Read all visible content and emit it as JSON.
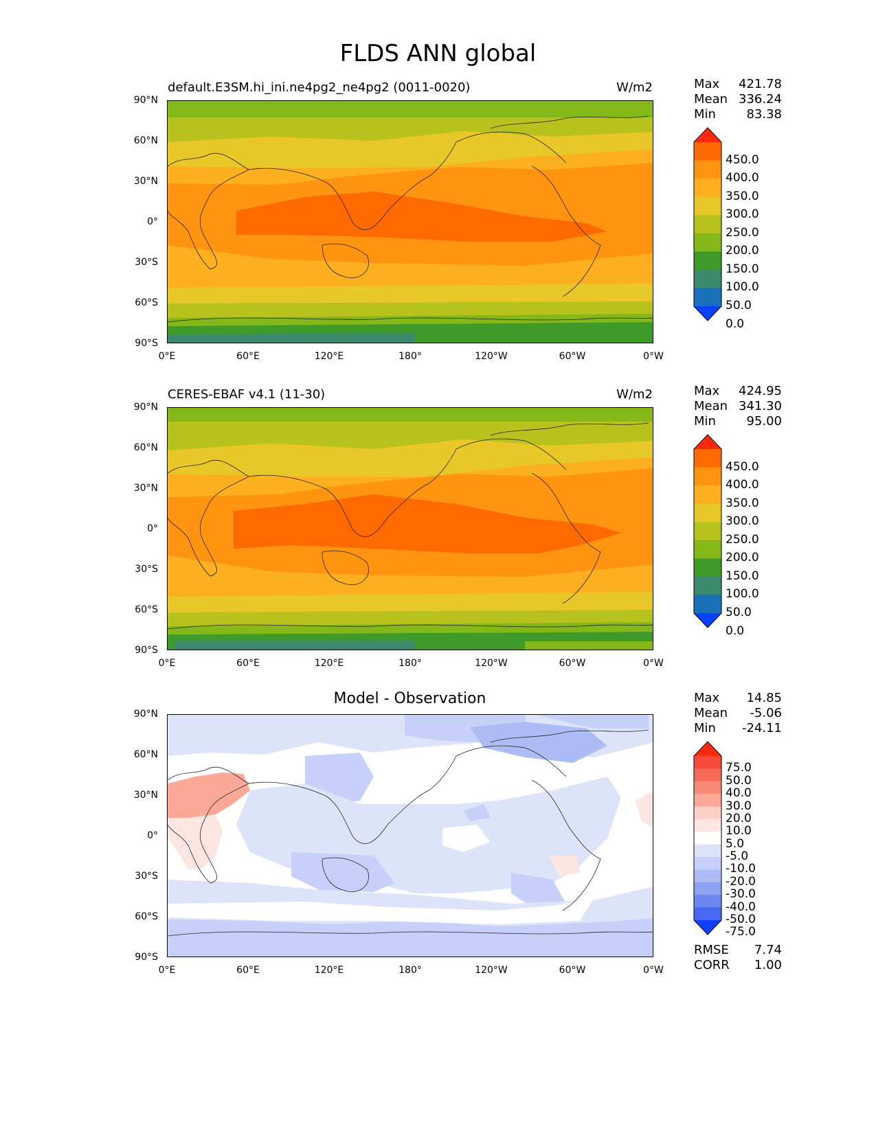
{
  "title": "FLDS ANN global",
  "axes": {
    "y_ticks": [
      "90°N",
      "60°N",
      "30°N",
      "0°",
      "30°S",
      "60°S",
      "90°S"
    ],
    "x_ticks": [
      "0°E",
      "60°E",
      "120°E",
      "180°",
      "120°W",
      "60°W",
      "0°W"
    ]
  },
  "panels": [
    {
      "label": "default.E3SM.hi_ini.ne4pg2_ne4pg2 (0011-0020)",
      "units": "W/m2",
      "stats": [
        [
          "Max",
          "421.78"
        ],
        [
          "Mean",
          "336.24"
        ],
        [
          "Min",
          "83.38"
        ]
      ],
      "colorbar": {
        "labels": [
          "450.0",
          "400.0",
          "350.0",
          "300.0",
          "250.0",
          "200.0",
          "150.0",
          "100.0",
          "50.0",
          "0.0"
        ],
        "colors": [
          "#ff2a0e",
          "#ff6a00",
          "#ff9410",
          "#fcb020",
          "#e8c828",
          "#b8c21e",
          "#84b818",
          "#3f9a2a",
          "#3a8a6e",
          "#1a70b8",
          "#0a40ff"
        ]
      }
    },
    {
      "label": "CERES-EBAF v4.1 (11-30)",
      "units": "W/m2",
      "stats": [
        [
          "Max",
          "424.95"
        ],
        [
          "Mean",
          "341.30"
        ],
        [
          "Min",
          "95.00"
        ]
      ],
      "colorbar": {
        "labels": [
          "450.0",
          "400.0",
          "350.0",
          "300.0",
          "250.0",
          "200.0",
          "150.0",
          "100.0",
          "50.0",
          "0.0"
        ],
        "colors": [
          "#ff2a0e",
          "#ff6a00",
          "#ff9410",
          "#fcb020",
          "#e8c828",
          "#b8c21e",
          "#84b818",
          "#3f9a2a",
          "#3a8a6e",
          "#1a70b8",
          "#0a40ff"
        ]
      }
    },
    {
      "title": "Model - Observation",
      "stats": [
        [
          "Max",
          "14.85"
        ],
        [
          "Mean",
          "-5.06"
        ],
        [
          "Min",
          "-24.11"
        ]
      ],
      "extra_stats": [
        [
          "RMSE",
          "7.74"
        ],
        [
          "CORR",
          "1.00"
        ]
      ],
      "colorbar": {
        "labels": [
          "75.0",
          "50.0",
          "40.0",
          "30.0",
          "20.0",
          "10.0",
          "5.0",
          "-5.0",
          "-10.0",
          "-20.0",
          "-30.0",
          "-40.0",
          "-50.0",
          "-75.0"
        ],
        "colors": [
          "#ff2a0e",
          "#f84a3a",
          "#f86a58",
          "#fa8a78",
          "#fca898",
          "#fdd0c8",
          "#fde6e2",
          "#ffffff",
          "#dde4fa",
          "#c6d0f8",
          "#aebcf6",
          "#8ea2f4",
          "#6c86f2",
          "#4868f4",
          "#1040ff"
        ]
      }
    }
  ]
}
